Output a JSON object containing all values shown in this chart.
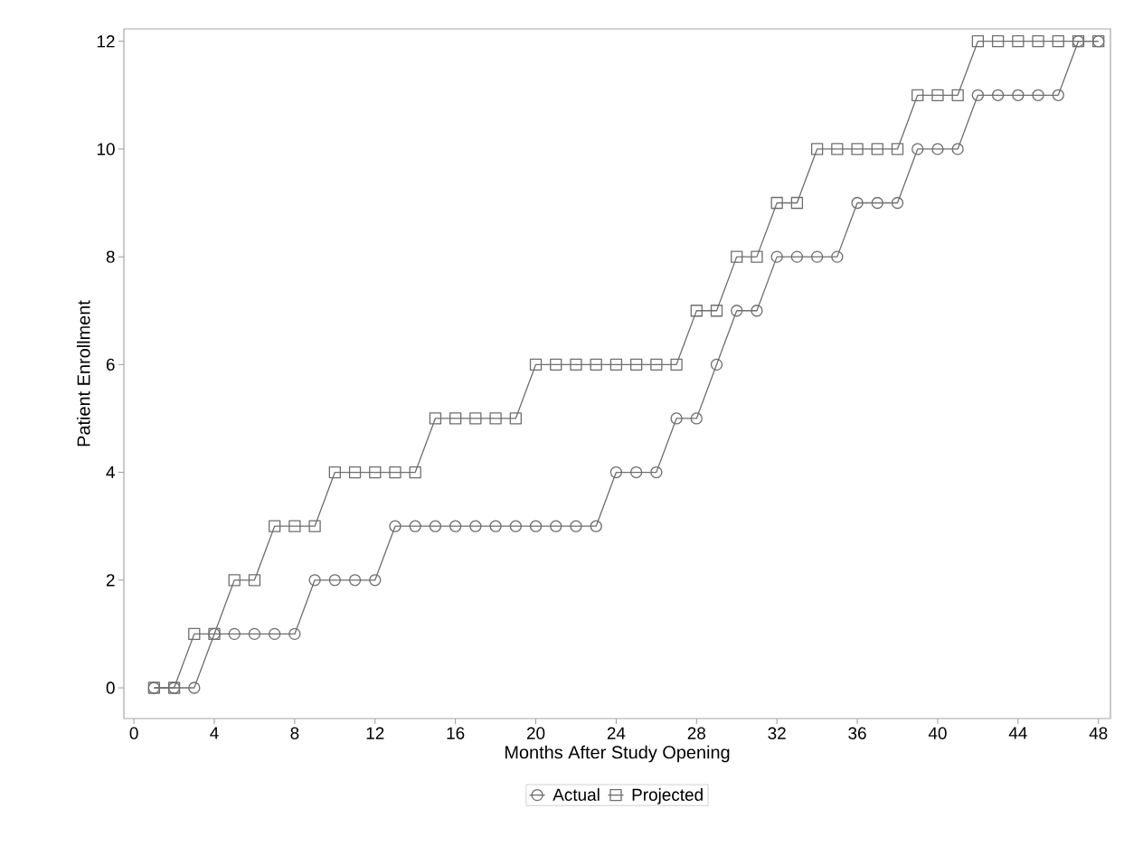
{
  "chart_data": {
    "type": "line",
    "xlabel": "Months After Study Opening",
    "ylabel": "Patient Enrollment",
    "x": [
      1,
      2,
      3,
      4,
      5,
      6,
      7,
      8,
      9,
      10,
      11,
      12,
      13,
      14,
      15,
      16,
      17,
      18,
      19,
      20,
      21,
      22,
      23,
      24,
      25,
      26,
      27,
      28,
      29,
      30,
      31,
      32,
      33,
      34,
      35,
      36,
      37,
      38,
      39,
      40,
      41,
      42,
      43,
      44,
      45,
      46,
      47,
      48
    ],
    "series": [
      {
        "name": "Actual",
        "color": "#6e6e6e",
        "marker": "circle",
        "values": [
          0,
          0,
          0,
          1,
          1,
          1,
          1,
          1,
          2,
          2,
          2,
          2,
          3,
          3,
          3,
          3,
          3,
          3,
          3,
          3,
          3,
          3,
          3,
          4,
          4,
          4,
          5,
          5,
          6,
          7,
          7,
          8,
          8,
          8,
          8,
          9,
          9,
          9,
          10,
          10,
          10,
          11,
          11,
          11,
          11,
          11,
          12,
          12
        ]
      },
      {
        "name": "Projected",
        "color": "#6e6e6e",
        "marker": "square",
        "values": [
          0,
          0,
          1,
          1,
          2,
          2,
          3,
          3,
          3,
          4,
          4,
          4,
          4,
          4,
          5,
          5,
          5,
          5,
          5,
          6,
          6,
          6,
          6,
          6,
          6,
          6,
          6,
          7,
          7,
          8,
          8,
          9,
          9,
          10,
          10,
          10,
          10,
          10,
          11,
          11,
          11,
          12,
          12,
          12,
          12,
          12,
          12,
          12
        ]
      }
    ],
    "xlim": [
      -0.5,
      48.6
    ],
    "xticks": [
      0,
      4,
      8,
      12,
      16,
      20,
      24,
      28,
      32,
      36,
      40,
      44,
      48
    ],
    "ylim": [
      -0.57,
      12.23
    ],
    "yticks": [
      0,
      2,
      4,
      6,
      8,
      10,
      12
    ],
    "grid": false,
    "legend": "bottom",
    "line_style": "solid"
  }
}
